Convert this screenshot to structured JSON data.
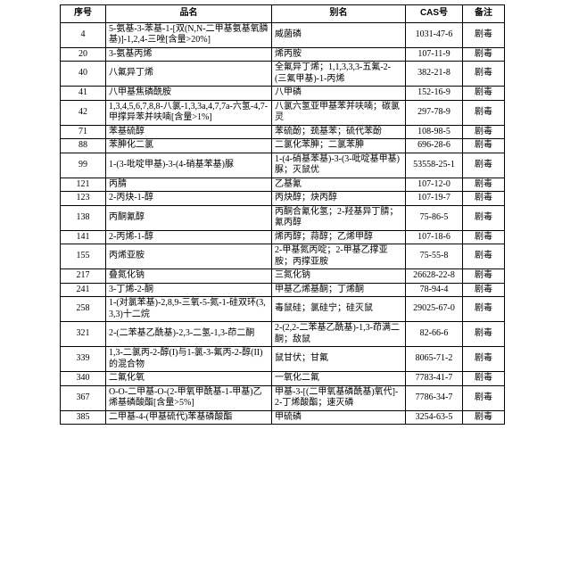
{
  "table": {
    "header": [
      "序号",
      "品名",
      "别名",
      "CAS号",
      "备注"
    ],
    "rows": [
      [
        "4",
        "5-氨基-3-苯基-1-[双(N,N-二甲基氨基氧膦基)]-1,2,4-三唑[含量>20%]",
        "威菌磷",
        "1031-47-6",
        "剧毒"
      ],
      [
        "20",
        "3-氨基丙烯",
        "烯丙胺",
        "107-11-9",
        "剧毒"
      ],
      [
        "40",
        "八氟异丁烯",
        "全氟异丁烯；1,1,3,3,3-五氟-2-(三氟甲基)-1-丙烯",
        "382-21-8",
        "剧毒"
      ],
      [
        "41",
        "八甲基焦磷酰胺",
        "八甲磷",
        "152-16-9",
        "剧毒"
      ],
      [
        "42",
        "1,3,4,5,6,7,8,8-八氯-1,3,3a,4,7,7a-六氢-4,7-甲撑异苯并呋喃[含量>1%]",
        "八氯六氢亚甲基苯并呋喃；碳氯灵",
        "297-78-9",
        "剧毒"
      ],
      [
        "71",
        "苯基硫醇",
        "苯硫酚；巯基苯；硫代苯酚",
        "108-98-5",
        "剧毒"
      ],
      [
        "88",
        "苯胂化二氯",
        "二氯化苯胂；二氯苯胂",
        "696-28-6",
        "剧毒"
      ],
      [
        "99",
        "1-(3-吡啶甲基)-3-(4-硝基苯基)脲",
        "1-(4-硝基苯基)-3-(3-吡啶基甲基)脲；灭鼠优",
        "53558-25-1",
        "剧毒"
      ],
      [
        "121",
        "丙腈",
        "乙基氰",
        "107-12-0",
        "剧毒"
      ],
      [
        "123",
        "2-丙炔-1-醇",
        "丙炔醇；炔丙醇",
        "107-19-7",
        "剧毒"
      ],
      [
        "138",
        "丙酮氰醇",
        "丙酮合氰化氢；2-羟基异丁腈；氰丙醇",
        "75-86-5",
        "剧毒"
      ],
      [
        "141",
        "2-丙烯-1-醇",
        "烯丙醇；蒜醇；乙烯甲醇",
        "107-18-6",
        "剧毒"
      ],
      [
        "155",
        "丙烯亚胺",
        "2-甲基氮丙啶；2-甲基乙撑亚胺；丙撑亚胺",
        "75-55-8",
        "剧毒"
      ],
      [
        "217",
        "叠氮化钠",
        "三氮化钠",
        "26628-22-8",
        "剧毒"
      ],
      [
        "241",
        "3-丁烯-2-酮",
        "甲基乙烯基酮；丁烯酮",
        "78-94-4",
        "剧毒"
      ],
      [
        "258",
        "1-(对氯苯基)-2,8,9-三氧-5-氮-1-硅双环(3,3,3)十二烷",
        "毒鼠硅；氯硅宁；硅灭鼠",
        "29025-67-0",
        "剧毒"
      ],
      [
        "321",
        "2-(二苯基乙酰基)-2,3-二氢-1,3-茚二酮",
        "2-(2,2-二苯基乙酰基)-1,3-茚满二酮；敌鼠",
        "82-66-6",
        "剧毒"
      ],
      [
        "339",
        "1,3-二氯丙-2-醇(I)与1-氯-3-氟丙-2-醇(II)的混合物",
        "鼠甘伏；甘氟",
        "8065-71-2",
        "剧毒"
      ],
      [
        "340",
        "二氟化氧",
        "一氧化二氟",
        "7783-41-7",
        "剧毒"
      ],
      [
        "367",
        "O-O-二甲基-O-(2-甲氧甲酰基-1-甲基)乙烯基磷酸酯[含量>5%]",
        "甲基-3-[(二甲氧基磷酰基)氧代]-2-丁烯酸酯；速灭磷",
        "7786-34-7",
        "剧毒"
      ],
      [
        "385",
        "二甲基-4-(甲基硫代)苯基磷酸酯",
        "甲硫磷",
        "3254-63-5",
        "剧毒"
      ]
    ]
  }
}
